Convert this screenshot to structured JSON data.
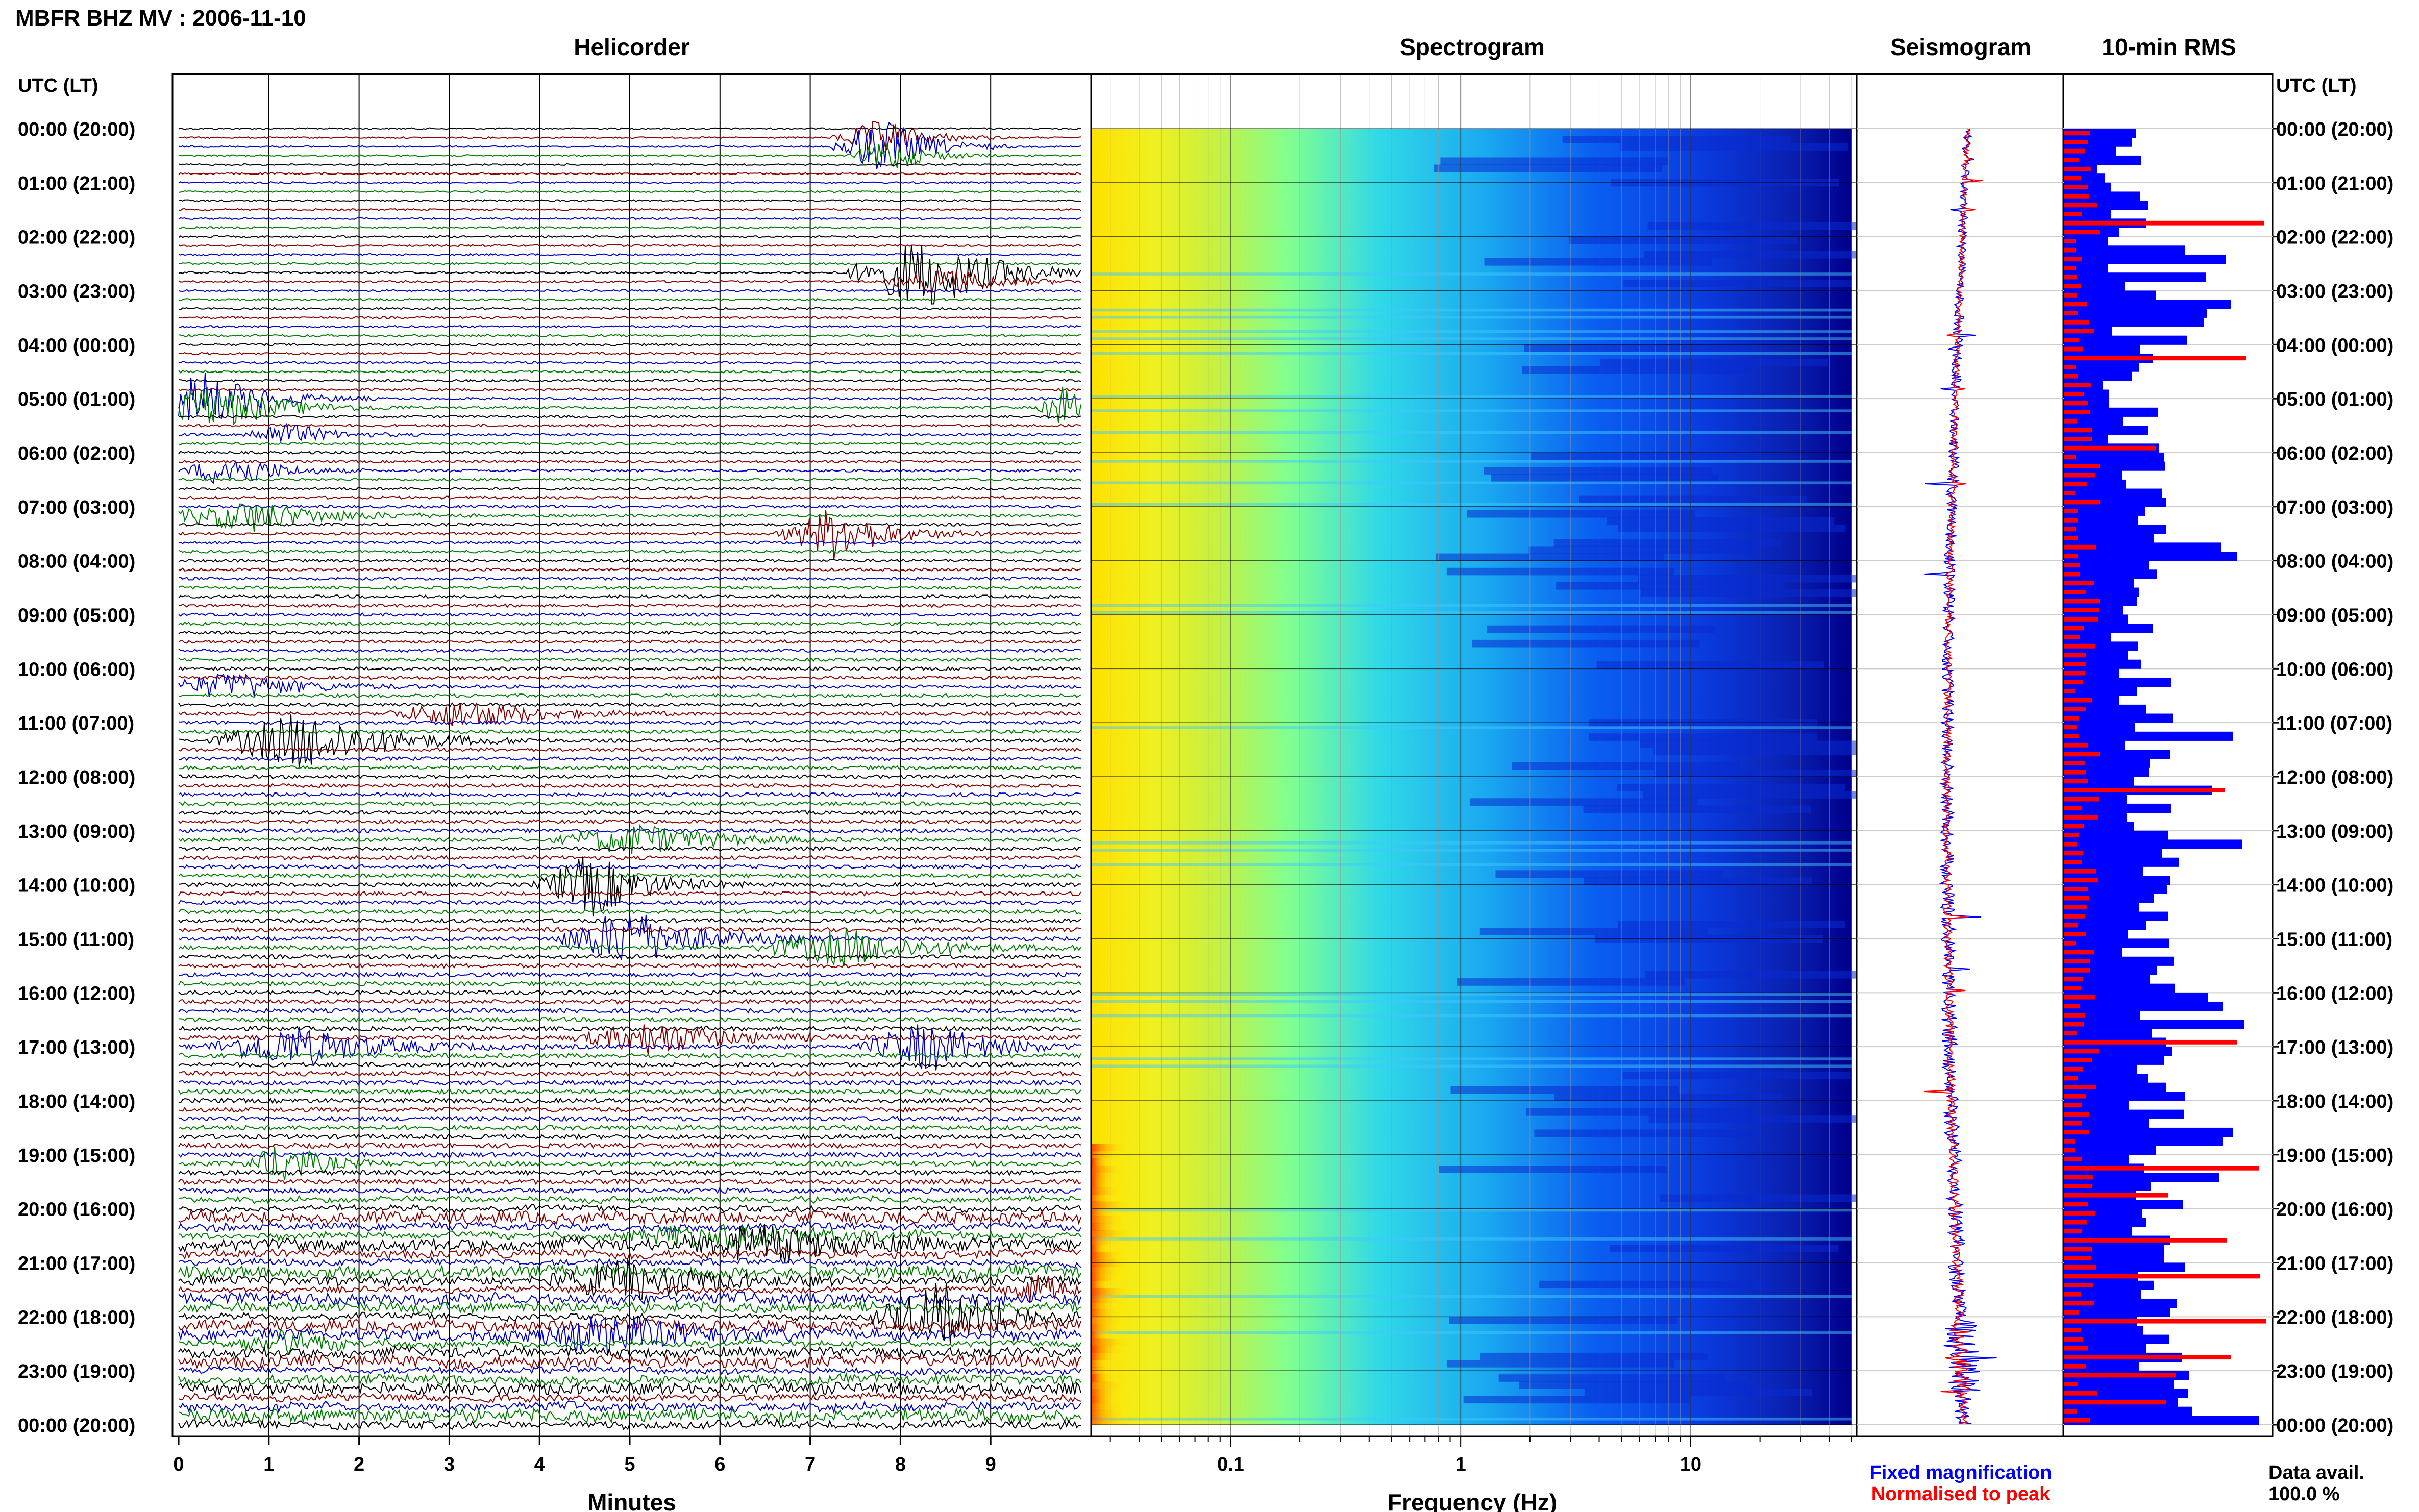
{
  "page": {
    "title": "MBFR BHZ MV : 2006-11-10"
  },
  "chart_data": [
    {
      "type": "line",
      "title": "Helicorder",
      "xlabel": "Minutes",
      "x_ticks": [
        "0",
        "1",
        "2",
        "3",
        "4",
        "5",
        "6",
        "7",
        "8",
        "9"
      ],
      "xlim": [
        0,
        10
      ],
      "ylabel": "UTC (LT)",
      "rows_per_hour": 6,
      "trace_colors": [
        "#000000",
        "#8b0000",
        "#0000cd",
        "#008000"
      ],
      "events": [
        {
          "row": 1,
          "minute": 7.8,
          "amplitude": 0.8,
          "width": 1.2
        },
        {
          "row": 2,
          "minute": 7.8,
          "amplitude": 1.3,
          "width": 1.2
        },
        {
          "row": 3,
          "minute": 7.9,
          "amplitude": 0.7,
          "width": 1.0
        },
        {
          "row": 16,
          "minute": 8.3,
          "amplitude": 1.6,
          "width": 2.0
        },
        {
          "row": 17,
          "minute": 8.5,
          "amplitude": 0.6,
          "width": 1.5
        },
        {
          "row": 30,
          "minute": 0.3,
          "amplitude": 1.2,
          "width": 1.5
        },
        {
          "row": 31,
          "minute": 9.8,
          "amplitude": 1.0,
          "width": 0.6
        },
        {
          "row": 31,
          "minute": 0.4,
          "amplitude": 1.0,
          "width": 1.8
        },
        {
          "row": 34,
          "minute": 1.2,
          "amplitude": 0.5,
          "width": 1.2
        },
        {
          "row": 38,
          "minute": 0.6,
          "amplitude": 0.8,
          "width": 1.2
        },
        {
          "row": 43,
          "minute": 0.8,
          "amplitude": 0.7,
          "width": 2.0
        },
        {
          "row": 45,
          "minute": 7.3,
          "amplitude": 1.2,
          "width": 1.4
        },
        {
          "row": 62,
          "minute": 0.6,
          "amplitude": 0.6,
          "width": 1.8
        },
        {
          "row": 65,
          "minute": 3.2,
          "amplitude": 0.6,
          "width": 2.0
        },
        {
          "row": 68,
          "minute": 1.4,
          "amplitude": 1.3,
          "width": 2.2
        },
        {
          "row": 79,
          "minute": 5.1,
          "amplitude": 0.7,
          "width": 2.0
        },
        {
          "row": 84,
          "minute": 4.6,
          "amplitude": 1.4,
          "width": 1.4
        },
        {
          "row": 90,
          "minute": 5.0,
          "amplitude": 1.3,
          "width": 1.8
        },
        {
          "row": 91,
          "minute": 7.4,
          "amplitude": 0.8,
          "width": 2.2
        },
        {
          "row": 102,
          "minute": 1.3,
          "amplitude": 0.9,
          "width": 2.2
        },
        {
          "row": 102,
          "minute": 8.3,
          "amplitude": 1.1,
          "width": 1.6
        },
        {
          "row": 101,
          "minute": 5.3,
          "amplitude": 0.7,
          "width": 2.0
        },
        {
          "row": 115,
          "minute": 1.2,
          "amplitude": 0.9,
          "width": 1.0
        },
        {
          "row": 123,
          "minute": 6.0,
          "amplitude": 0.5,
          "width": 2.5
        },
        {
          "row": 124,
          "minute": 6.5,
          "amplitude": 0.8,
          "width": 2.0
        },
        {
          "row": 128,
          "minute": 5.0,
          "amplitude": 0.9,
          "width": 2.0
        },
        {
          "row": 129,
          "minute": 9.5,
          "amplitude": 0.7,
          "width": 1.0
        },
        {
          "row": 132,
          "minute": 8.5,
          "amplitude": 1.4,
          "width": 1.8
        },
        {
          "row": 134,
          "minute": 4.8,
          "amplitude": 0.8,
          "width": 2.0
        },
        {
          "row": 135,
          "minute": 1.2,
          "amplitude": 0.5,
          "width": 1.5
        }
      ]
    },
    {
      "type": "heatmap",
      "title": "Spectrogram",
      "xlabel": "Frequency (Hz)",
      "x_scale": "log",
      "xlim": [
        0.025,
        50
      ],
      "x_ticks": [
        "0.1",
        "1",
        "10"
      ],
      "colormap": [
        "#00008b",
        "#0000ff",
        "#00bfff",
        "#7fffd4",
        "#ffff00",
        "#ff8c00",
        "#ff0000"
      ]
    },
    {
      "type": "line",
      "title": "Seismogram",
      "series": [
        {
          "name": "Fixed magnification",
          "color": "#0000ff"
        },
        {
          "name": "Normalised to peak",
          "color": "#ff0000"
        }
      ]
    },
    {
      "type": "bar",
      "title": "10-min RMS",
      "orientation": "horizontal",
      "series": [
        {
          "name": "Fixed magnification",
          "color": "#0000ff"
        },
        {
          "name": "Normalised to peak",
          "color": "#ff0000"
        }
      ]
    }
  ],
  "time_axis": {
    "label": "UTC (LT)",
    "ticks": [
      "00:00 (20:00)",
      "01:00 (21:00)",
      "02:00 (22:00)",
      "03:00 (23:00)",
      "04:00 (00:00)",
      "05:00 (01:00)",
      "06:00 (02:00)",
      "07:00 (03:00)",
      "08:00 (04:00)",
      "09:00 (05:00)",
      "10:00 (06:00)",
      "11:00 (07:00)",
      "12:00 (08:00)",
      "13:00 (09:00)",
      "14:00 (10:00)",
      "15:00 (11:00)",
      "16:00 (12:00)",
      "17:00 (13:00)",
      "18:00 (14:00)",
      "19:00 (15:00)",
      "20:00 (16:00)",
      "21:00 (17:00)",
      "22:00 (18:00)",
      "23:00 (19:00)",
      "00:00 (20:00)"
    ]
  },
  "legend": {
    "fixed": "Fixed magnification",
    "normalised": "Normalised to peak",
    "fixed_color": "#0000ff",
    "normalised_color": "#ff0000"
  },
  "data_avail": {
    "label": "Data avail.",
    "value": "100.0 %"
  }
}
